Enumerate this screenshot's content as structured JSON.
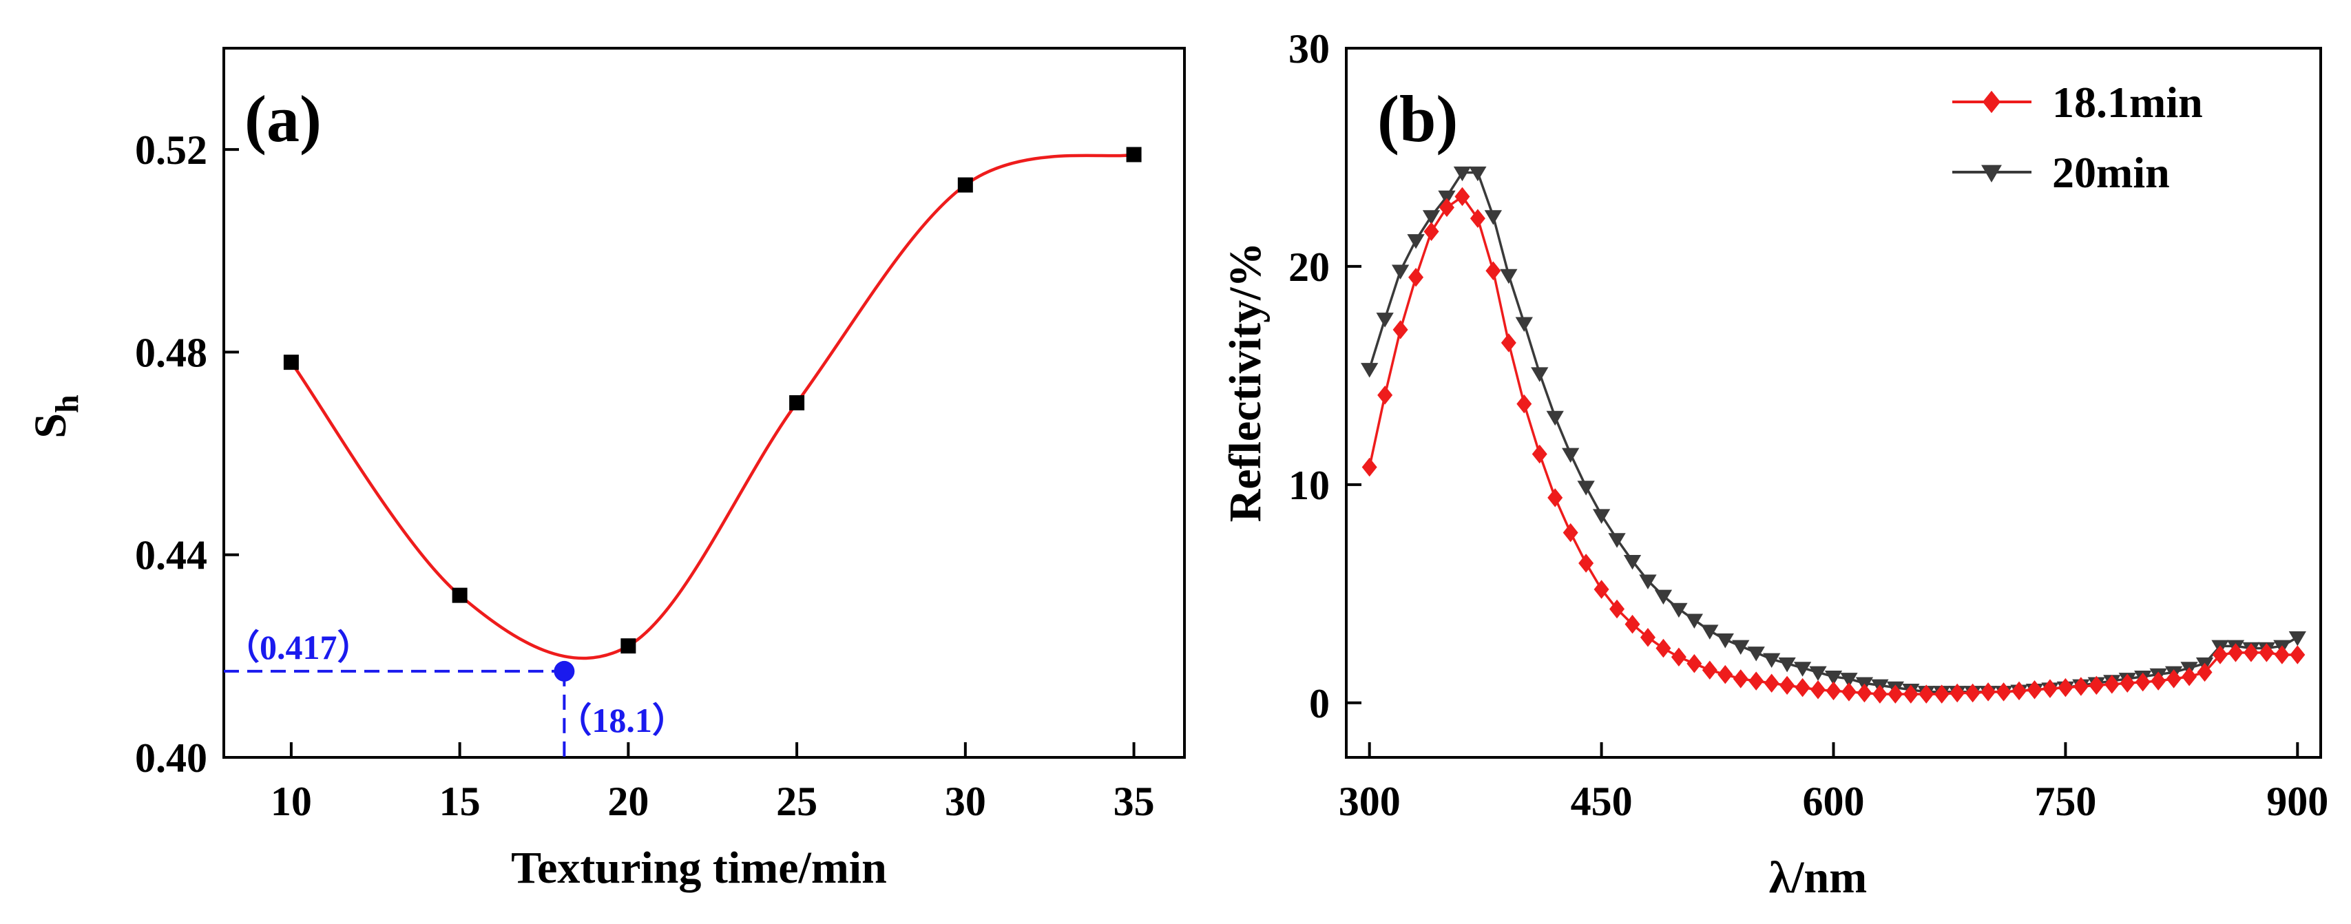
{
  "chart_data": [
    {
      "type": "scatter",
      "panel_label": "(a)",
      "xlabel": "Texturing time/min",
      "ylabel": "S",
      "ylabel_sub": "h",
      "xlim": [
        8,
        36.5
      ],
      "ylim": [
        0.4,
        0.54
      ],
      "xticks": [
        10,
        15,
        20,
        25,
        30,
        35
      ],
      "yticks": [
        0.4,
        0.44,
        0.48,
        0.52
      ],
      "ytick_labels": [
        "0.40",
        "0.44",
        "0.48",
        "0.52"
      ],
      "series": [
        {
          "name": "Sh",
          "color": "#000000",
          "line_color": "#ee1c1c",
          "marker": "square",
          "x": [
            10,
            15,
            20,
            25,
            30,
            35
          ],
          "y": [
            0.478,
            0.432,
            0.422,
            0.47,
            0.513,
            0.519
          ]
        }
      ],
      "annotation": {
        "x": 18.1,
        "y": 0.417,
        "color": "#1a1aee",
        "x_label": "（18.1）",
        "y_label": "（0.417）"
      }
    },
    {
      "type": "line",
      "panel_label": "(b)",
      "xlabel": "λ/nm",
      "ylabel": "Reflectivity/%",
      "xlim": [
        285,
        915
      ],
      "ylim": [
        -2.5,
        30
      ],
      "xticks": [
        300,
        450,
        600,
        750,
        900
      ],
      "yticks": [
        0,
        10,
        20,
        30
      ],
      "legend_position": "top-right",
      "series": [
        {
          "name": "18.1min",
          "color": "#ee1c1c",
          "marker": "diamond",
          "x": [
            300,
            310,
            320,
            330,
            340,
            350,
            360,
            370,
            380,
            390,
            400,
            410,
            420,
            430,
            440,
            450,
            460,
            470,
            480,
            490,
            500,
            510,
            520,
            530,
            540,
            550,
            560,
            570,
            580,
            590,
            600,
            610,
            620,
            630,
            640,
            650,
            660,
            670,
            680,
            690,
            700,
            710,
            720,
            730,
            740,
            750,
            760,
            770,
            780,
            790,
            800,
            810,
            820,
            830,
            840,
            850,
            860,
            870,
            880,
            890,
            900
          ],
          "y": [
            10.8,
            14.1,
            17.1,
            19.5,
            21.6,
            22.7,
            23.2,
            22.2,
            19.8,
            16.5,
            13.7,
            11.4,
            9.4,
            7.8,
            6.4,
            5.2,
            4.3,
            3.6,
            3.0,
            2.5,
            2.1,
            1.8,
            1.5,
            1.3,
            1.1,
            1.0,
            0.9,
            0.8,
            0.7,
            0.6,
            0.55,
            0.5,
            0.45,
            0.4,
            0.4,
            0.4,
            0.4,
            0.4,
            0.45,
            0.45,
            0.5,
            0.5,
            0.55,
            0.6,
            0.65,
            0.7,
            0.75,
            0.8,
            0.85,
            0.9,
            0.95,
            1.0,
            1.1,
            1.2,
            1.4,
            2.2,
            2.3,
            2.3,
            2.3,
            2.2,
            2.2
          ]
        },
        {
          "name": "20min",
          "color": "#3a3a3a",
          "marker": "triangle-down",
          "x": [
            300,
            310,
            320,
            330,
            340,
            350,
            360,
            370,
            380,
            390,
            400,
            410,
            420,
            430,
            440,
            450,
            460,
            470,
            480,
            490,
            500,
            510,
            520,
            530,
            540,
            550,
            560,
            570,
            580,
            590,
            600,
            610,
            620,
            630,
            640,
            650,
            660,
            670,
            680,
            690,
            700,
            710,
            720,
            730,
            740,
            750,
            760,
            770,
            780,
            790,
            800,
            810,
            820,
            830,
            840,
            850,
            860,
            870,
            880,
            890,
            900
          ],
          "y": [
            15.3,
            17.6,
            19.8,
            21.2,
            22.3,
            23.2,
            24.3,
            24.3,
            22.3,
            19.6,
            17.4,
            15.1,
            13.1,
            11.4,
            9.9,
            8.6,
            7.5,
            6.5,
            5.6,
            4.9,
            4.3,
            3.8,
            3.3,
            2.9,
            2.6,
            2.3,
            2.0,
            1.8,
            1.6,
            1.4,
            1.2,
            1.1,
            0.9,
            0.8,
            0.7,
            0.6,
            0.5,
            0.5,
            0.5,
            0.5,
            0.5,
            0.5,
            0.55,
            0.6,
            0.65,
            0.7,
            0.8,
            0.9,
            1.0,
            1.1,
            1.2,
            1.3,
            1.4,
            1.6,
            1.8,
            2.6,
            2.6,
            2.5,
            2.5,
            2.6,
            3.0
          ]
        }
      ]
    }
  ]
}
